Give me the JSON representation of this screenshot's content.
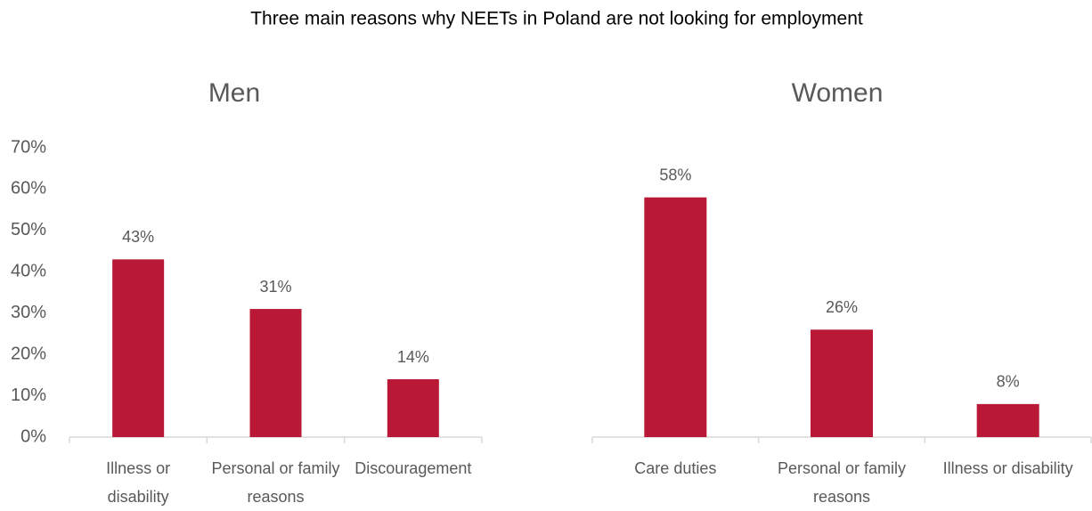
{
  "title": "Three main reasons why NEETs in Poland are not looking for employment",
  "chart_data": [
    {
      "type": "bar",
      "title": "Men",
      "categories": [
        "Illness or disability",
        "Personal or family reasons",
        "Discouragement"
      ],
      "values": [
        43,
        31,
        14
      ],
      "value_labels": [
        "43%",
        "31%",
        "14%"
      ],
      "color": "#b91837",
      "ylim": [
        0,
        70
      ],
      "yticks": [
        {
          "value": 0,
          "label": "0%"
        },
        {
          "value": 10,
          "label": "10%"
        },
        {
          "value": 20,
          "label": "20%"
        },
        {
          "value": 30,
          "label": "30%"
        },
        {
          "value": 40,
          "label": "40%"
        },
        {
          "value": 50,
          "label": "50%"
        },
        {
          "value": 60,
          "label": "60%"
        },
        {
          "value": 70,
          "label": "70%"
        }
      ]
    },
    {
      "type": "bar",
      "title": "Women",
      "categories": [
        "Care duties",
        "Personal or family reasons",
        "Illness or disability"
      ],
      "values": [
        58,
        26,
        8
      ],
      "value_labels": [
        "58%",
        "26%",
        "8%"
      ],
      "color": "#b91837",
      "ylim": [
        0,
        70
      ]
    }
  ]
}
